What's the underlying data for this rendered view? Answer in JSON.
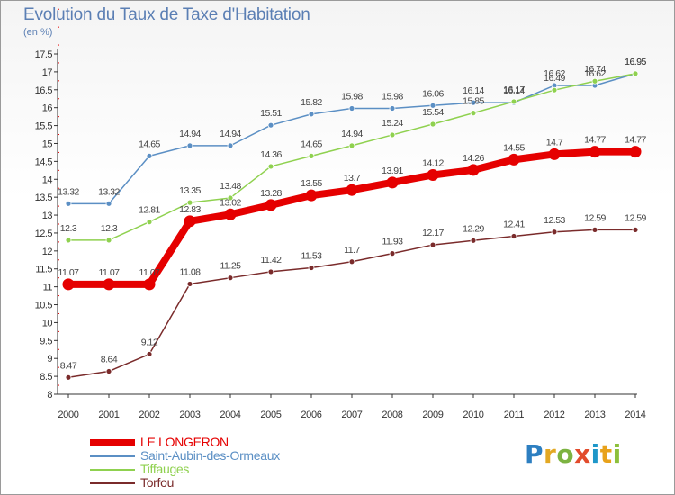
{
  "chart_data": {
    "type": "line",
    "title": "Evolution du Taux de Taxe d'Habitation",
    "subtitle": "(en %)",
    "x": [
      "2000",
      "2001",
      "2002",
      "2003",
      "2004",
      "2005",
      "2006",
      "2007",
      "2008",
      "2009",
      "2010",
      "2011",
      "2012",
      "2013",
      "2014"
    ],
    "ylim": [
      8,
      17.5
    ],
    "yticks": [
      "8",
      "8.5",
      "9",
      "9.5",
      "10",
      "10.5",
      "11",
      "11.5",
      "12",
      "12.5",
      "13",
      "13.5",
      "14",
      "14.5",
      "15",
      "15.5",
      "16",
      "16.5",
      "17",
      "17.5"
    ],
    "grid": false,
    "legend_position": "bottom-left",
    "series": [
      {
        "name": "LE LONGERON",
        "color": "#e50000",
        "values": [
          11.07,
          11.07,
          11.07,
          12.83,
          13.02,
          13.28,
          13.55,
          13.7,
          13.91,
          14.12,
          14.26,
          14.55,
          14.7,
          14.77,
          14.77
        ],
        "labels": [
          "11.07",
          "11.07",
          "11.07",
          "12.83",
          "13.02",
          "13.28",
          "13.55",
          "13.7",
          "13.91",
          "14.12",
          "14.26",
          "14.55",
          "14.7",
          "14.77",
          "14.77"
        ]
      },
      {
        "name": "Saint-Aubin-des-Ormeaux",
        "color": "#5b8fc4",
        "values": [
          13.32,
          13.32,
          14.65,
          14.94,
          14.94,
          15.51,
          15.82,
          15.98,
          15.98,
          16.06,
          16.14,
          16.14,
          16.62,
          16.62,
          16.95
        ],
        "labels": [
          "13.32",
          "13.32",
          "14.65",
          "14.94",
          "14.94",
          "15.51",
          "15.82",
          "15.98",
          "15.98",
          "16.06",
          "16.14",
          "16.14",
          "16.62",
          "16.62",
          "16.95"
        ]
      },
      {
        "name": "Tiffauges",
        "color": "#8fd14f",
        "values": [
          12.3,
          12.3,
          12.81,
          13.35,
          13.48,
          14.36,
          14.65,
          14.94,
          15.24,
          15.54,
          15.85,
          16.17,
          16.49,
          16.74,
          16.95
        ],
        "labels": [
          "12.3",
          "12.3",
          "12.81",
          "13.35",
          "13.48",
          "14.36",
          "14.65",
          "14.94",
          "15.24",
          "15.54",
          "15.85",
          "16.17",
          "16.49",
          "16.74",
          "16.95"
        ]
      },
      {
        "name": "Torfou",
        "color": "#7a2b2b",
        "values": [
          8.47,
          8.64,
          9.12,
          11.08,
          11.25,
          11.42,
          11.53,
          11.7,
          11.93,
          12.17,
          12.29,
          12.41,
          12.53,
          12.59,
          12.59
        ],
        "labels": [
          "8.47",
          "8.64",
          "9.12",
          "11.08",
          "11.25",
          "11.42",
          "11.53",
          "11.7",
          "11.93",
          "12.17",
          "12.29",
          "12.41",
          "12.53",
          "12.59",
          "12.59"
        ]
      }
    ]
  },
  "logo": {
    "p": "P",
    "r": "r",
    "o": "o",
    "x": "x",
    "i": "i",
    "t": "t",
    "i2": "i"
  }
}
